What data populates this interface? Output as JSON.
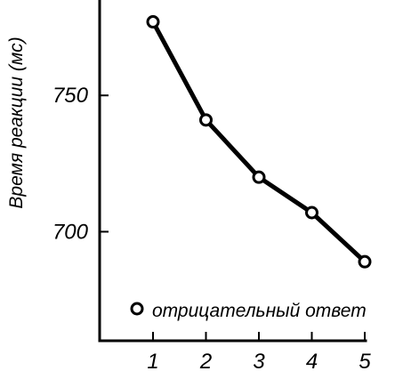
{
  "chart_data": {
    "type": "line",
    "title": "",
    "xlabel": "",
    "ylabel": "Время реакции (мс)",
    "categories": [
      "1",
      "2",
      "3",
      "4",
      "5"
    ],
    "x_ticks": [
      "1",
      "2",
      "3",
      "4",
      "5"
    ],
    "y_ticks": [
      "700",
      "750"
    ],
    "ylim": [
      660,
      785
    ],
    "series": [
      {
        "name": "отрицательный ответ",
        "values": [
          777,
          741,
          720,
          707,
          689
        ]
      }
    ],
    "legend": {
      "placement": "bottom-right",
      "label": "отрицательный ответ"
    },
    "grid": false,
    "colors": {
      "line": "#000000",
      "marker_fill": "#ffffff",
      "background": "#ffffff"
    }
  }
}
